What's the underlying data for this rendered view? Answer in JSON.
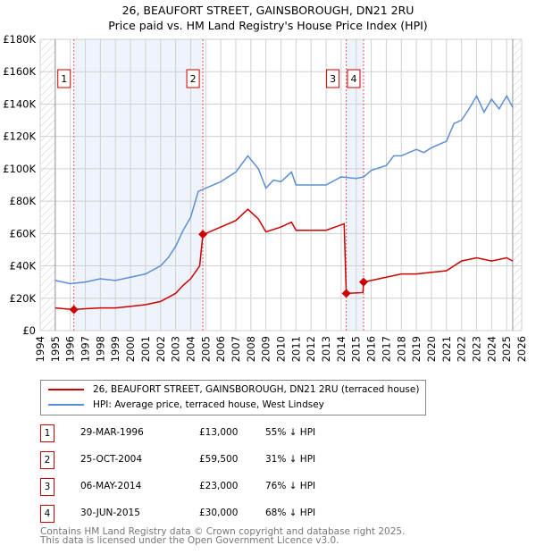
{
  "chart_data": {
    "type": "line",
    "title": "26, BEAUFORT STREET, GAINSBOROUGH, DN21 2RU",
    "subtitle": "Price paid vs. HM Land Registry's House Price Index (HPI)",
    "xlim": [
      1994,
      2026
    ],
    "ylim": [
      0,
      180000
    ],
    "x_ticks": [
      "1994",
      "1995",
      "1996",
      "1997",
      "1998",
      "1999",
      "2000",
      "2001",
      "2002",
      "2003",
      "2004",
      "2005",
      "2006",
      "2007",
      "2008",
      "2009",
      "2010",
      "2011",
      "2012",
      "2013",
      "2014",
      "2015",
      "2016",
      "2017",
      "2018",
      "2019",
      "2020",
      "2021",
      "2022",
      "2023",
      "2024",
      "2025",
      "2026"
    ],
    "y_ticks": [
      {
        "v": 0,
        "label": "£0"
      },
      {
        "v": 20000,
        "label": "£20K"
      },
      {
        "v": 40000,
        "label": "£40K"
      },
      {
        "v": 60000,
        "label": "£60K"
      },
      {
        "v": 80000,
        "label": "£80K"
      },
      {
        "v": 100000,
        "label": "£100K"
      },
      {
        "v": 120000,
        "label": "£120K"
      },
      {
        "v": 140000,
        "label": "£140K"
      },
      {
        "v": 160000,
        "label": "£160K"
      },
      {
        "v": 180000,
        "label": "£180K"
      }
    ],
    "grid": true,
    "series": [
      {
        "name": "26, BEAUFORT STREET, GAINSBOROUGH, DN21 2RU (terraced house)",
        "color": "#cc0000",
        "x": [
          1995,
          1996.24,
          1997,
          1998,
          1999,
          2000,
          2001,
          2002,
          2003,
          2003.5,
          2004,
          2004.6,
          2004.81,
          2005,
          2006,
          2007,
          2007.8,
          2008.5,
          2009,
          2010,
          2010.7,
          2011,
          2012,
          2013,
          2014.2,
          2014.34,
          2015.45,
          2015.49,
          2016,
          2017,
          2018,
          2019,
          2020,
          2021,
          2022,
          2023,
          2024,
          2025,
          2025.4
        ],
        "y": [
          14000,
          13000,
          13500,
          14000,
          14000,
          15000,
          16000,
          18000,
          23000,
          28000,
          32000,
          40000,
          59500,
          60000,
          64000,
          68000,
          75000,
          69000,
          61000,
          64000,
          67000,
          62000,
          62000,
          62000,
          66000,
          23000,
          23500,
          30000,
          31000,
          33000,
          35000,
          35000,
          36000,
          37000,
          43000,
          45000,
          43000,
          45000,
          43000
        ]
      },
      {
        "name": "HPI: Average price, terraced house, West Lindsey",
        "color": "#5b8fd4",
        "x": [
          1995,
          1995.5,
          1996,
          1997,
          1998,
          1999,
          2000,
          2001,
          2002,
          2002.5,
          2003,
          2003.5,
          2004,
          2004.5,
          2005,
          2006,
          2007,
          2007.8,
          2008.5,
          2009,
          2009.5,
          2010,
          2010.7,
          2011,
          2012,
          2013,
          2014,
          2015,
          2015.5,
          2016,
          2017,
          2017.5,
          2018,
          2019,
          2019.5,
          2020,
          2021,
          2021.5,
          2022,
          2022.5,
          2023,
          2023.5,
          2024,
          2024.5,
          2025,
          2025.4
        ],
        "y": [
          31000,
          30000,
          29000,
          30000,
          32000,
          31000,
          33000,
          35000,
          40000,
          45000,
          52000,
          62000,
          70000,
          86000,
          88000,
          92000,
          98000,
          108000,
          100000,
          88000,
          93000,
          92000,
          98000,
          90000,
          90000,
          90000,
          95000,
          94000,
          95000,
          99000,
          102000,
          108000,
          108000,
          112000,
          110000,
          113000,
          117000,
          128000,
          130000,
          137000,
          145000,
          135000,
          143000,
          137000,
          145000,
          138000
        ]
      }
    ],
    "sales": [
      {
        "id": "1",
        "x": 1996.24,
        "date": "29-MAR-1996",
        "price": 13000,
        "price_label": "£13,000",
        "hpi": "55% ↓ HPI"
      },
      {
        "id": "2",
        "x": 2004.81,
        "date": "25-OCT-2004",
        "price": 59500,
        "price_label": "£59,500",
        "hpi": "31% ↓ HPI"
      },
      {
        "id": "3",
        "x": 2014.34,
        "date": "06-MAY-2014",
        "price": 23000,
        "price_label": "£23,000",
        "hpi": "76% ↓ HPI"
      },
      {
        "id": "4",
        "x": 2015.49,
        "date": "30-JUN-2015",
        "price": 30000,
        "price_label": "£30,000",
        "hpi": "68% ↓ HPI"
      }
    ],
    "legend_position": "bottom"
  },
  "footer": {
    "line1": "Contains HM Land Registry data © Crown copyright and database right 2025.",
    "line2": "This data is licensed under the Open Government Licence v3.0."
  }
}
